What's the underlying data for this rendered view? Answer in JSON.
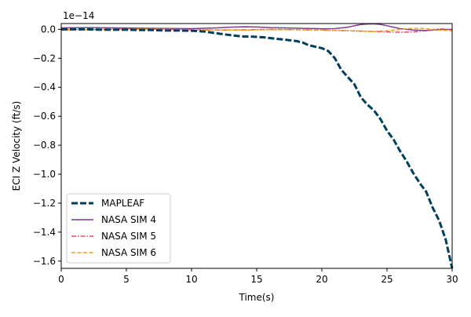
{
  "chart_data": {
    "type": "line",
    "title": "",
    "xlabel": "Time(s)",
    "ylabel": "ECI Z Velocity (ft/s)",
    "offset_text": "1e−14",
    "xlim": [
      0,
      30
    ],
    "ylim": [
      -1.65,
      0.04
    ],
    "xticks": [
      0,
      5,
      10,
      15,
      20,
      25,
      30
    ],
    "xtick_labels": [
      "0",
      "5",
      "10",
      "15",
      "20",
      "25",
      "30"
    ],
    "yticks": [
      0.0,
      -0.2,
      -0.4,
      -0.6,
      -0.8,
      -1.0,
      -1.2,
      -1.4,
      -1.6
    ],
    "ytick_labels": [
      "0.0",
      "−0.2",
      "−0.4",
      "−0.6",
      "−0.8",
      "−1.0",
      "−1.2",
      "−1.4",
      "−1.6"
    ],
    "grid": false,
    "legend_position": "lower-left",
    "series": [
      {
        "name": "MAPLEAF",
        "color": "#003f5c",
        "style": "dashed-thick",
        "x": [
          0,
          1,
          2,
          3,
          4,
          5,
          6,
          7,
          8,
          9,
          10,
          10.5,
          11,
          11.5,
          12,
          12.5,
          13,
          13.5,
          14,
          14.5,
          15,
          15.5,
          16,
          16.5,
          17,
          17.5,
          18,
          18.5,
          19,
          19.5,
          20,
          20.5,
          21,
          21.5,
          22,
          22.5,
          23,
          23.5,
          24,
          24.5,
          25,
          25.5,
          26,
          26.5,
          27,
          27.5,
          28,
          28.5,
          29,
          29.5,
          30
        ],
        "y": [
          0.0,
          0.0,
          0.0,
          -0.003,
          -0.003,
          -0.003,
          -0.005,
          -0.005,
          -0.008,
          -0.008,
          -0.01,
          -0.012,
          -0.015,
          -0.022,
          -0.028,
          -0.035,
          -0.04,
          -0.045,
          -0.05,
          -0.05,
          -0.052,
          -0.055,
          -0.06,
          -0.065,
          -0.07,
          -0.075,
          -0.08,
          -0.09,
          -0.11,
          -0.12,
          -0.13,
          -0.15,
          -0.2,
          -0.28,
          -0.33,
          -0.38,
          -0.47,
          -0.52,
          -0.56,
          -0.62,
          -0.7,
          -0.76,
          -0.84,
          -0.91,
          -0.99,
          -1.06,
          -1.12,
          -1.23,
          -1.32,
          -1.45,
          -1.65
        ]
      },
      {
        "name": "NASA SIM 4",
        "color": "#7a3d8c",
        "style": "solid",
        "x": [
          0,
          2,
          4,
          6,
          8,
          10,
          12,
          13,
          14,
          15,
          16,
          17,
          18,
          19,
          20,
          21,
          22,
          22.5,
          23,
          23.5,
          24,
          24.5,
          25,
          25.5,
          26,
          27,
          28,
          29,
          30
        ],
        "y": [
          0.01,
          0.012,
          0.01,
          0.008,
          0.006,
          0.005,
          0.01,
          0.015,
          0.018,
          0.016,
          0.012,
          0.01,
          0.008,
          0.006,
          0.004,
          0.005,
          0.015,
          0.025,
          0.033,
          0.037,
          0.038,
          0.034,
          0.025,
          0.015,
          0.005,
          -0.005,
          -0.008,
          -0.002,
          0.0
        ]
      },
      {
        "name": "NASA SIM 5",
        "color": "#e84a5f",
        "style": "dashdot",
        "x": [
          0,
          2,
          4,
          6,
          8,
          10,
          12,
          14,
          16,
          18,
          20,
          22,
          24,
          26,
          27,
          28,
          29,
          30
        ],
        "y": [
          0.0,
          -0.002,
          0.0,
          0.002,
          0.0,
          -0.003,
          -0.005,
          -0.003,
          0.0,
          -0.002,
          -0.005,
          -0.01,
          -0.015,
          -0.02,
          -0.018,
          -0.01,
          0.005,
          -0.005
        ]
      },
      {
        "name": "NASA SIM 6",
        "color": "#f2a017",
        "style": "dashed",
        "x": [
          0,
          2,
          4,
          6,
          8,
          10,
          12,
          14,
          16,
          18,
          20,
          22,
          24,
          25,
          26,
          27,
          28,
          29,
          30
        ],
        "y": [
          -0.005,
          -0.003,
          0.0,
          0.002,
          0.0,
          -0.002,
          -0.004,
          -0.005,
          -0.003,
          -0.002,
          -0.005,
          -0.01,
          -0.015,
          -0.01,
          0.0,
          0.008,
          0.005,
          -0.005,
          -0.01
        ]
      }
    ]
  }
}
